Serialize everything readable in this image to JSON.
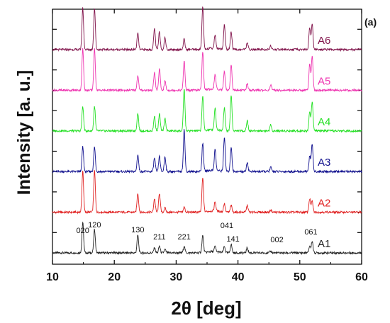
{
  "chart_data": {
    "type": "line",
    "panel_label": "(a)",
    "xlabel": "2θ [deg]",
    "ylabel": "Intensity [a. u.]",
    "xlim": [
      10,
      60
    ],
    "xticks": [
      10,
      20,
      30,
      40,
      50,
      60
    ],
    "yticks_labeled": false,
    "grid": false,
    "stacked_offset": true,
    "peak_positions": [
      14.9,
      16.8,
      23.8,
      26.5,
      27.3,
      28.2,
      31.3,
      34.3,
      36.3,
      37.8,
      38.9,
      41.5,
      45.3,
      51.6,
      52.0
    ],
    "series": [
      {
        "name": "A1",
        "color": "#222222",
        "values": [
          0.72,
          0.55,
          0.42,
          0.12,
          0.16,
          0.08,
          0.16,
          0.4,
          0.12,
          0.14,
          0.2,
          0.12,
          0.04,
          0.16,
          0.28
        ]
      },
      {
        "name": "A2",
        "color": "#e02020",
        "values": [
          0.98,
          0.98,
          0.45,
          0.32,
          0.45,
          0.1,
          0.12,
          0.8,
          0.22,
          0.2,
          0.16,
          0.16,
          0.06,
          0.32,
          0.26
        ]
      },
      {
        "name": "A3",
        "color": "#10108e",
        "values": [
          0.58,
          0.58,
          0.4,
          0.32,
          0.36,
          0.35,
          1.0,
          0.65,
          0.5,
          0.8,
          0.58,
          0.22,
          0.1,
          0.36,
          0.65
        ]
      },
      {
        "name": "A4",
        "color": "#22e022",
        "values": [
          0.58,
          0.58,
          0.42,
          0.35,
          0.4,
          0.3,
          1.0,
          0.82,
          0.52,
          0.55,
          0.85,
          0.24,
          0.14,
          0.45,
          0.7
        ]
      },
      {
        "name": "A5",
        "color": "#ee33b0",
        "values": [
          0.98,
          0.98,
          0.35,
          0.42,
          0.5,
          0.22,
          0.7,
          0.92,
          0.35,
          0.45,
          0.6,
          0.16,
          0.12,
          0.62,
          0.8
        ]
      },
      {
        "name": "A6",
        "color": "#80124a",
        "values": [
          0.98,
          0.98,
          0.38,
          0.5,
          0.42,
          0.28,
          0.25,
          1.0,
          0.32,
          0.58,
          0.42,
          0.16,
          0.08,
          0.52,
          0.62
        ]
      }
    ],
    "peak_labels": [
      {
        "text": "020",
        "x": 14.9,
        "tier": "low"
      },
      {
        "text": "120",
        "x": 16.8,
        "tier": "high"
      },
      {
        "text": "130",
        "x": 23.8,
        "tier": "mid"
      },
      {
        "text": "211",
        "x": 27.3,
        "tier": "low"
      },
      {
        "text": "221",
        "x": 31.3,
        "tier": "low"
      },
      {
        "text": "041",
        "x": 38.2,
        "tier": "high"
      },
      {
        "text": "141",
        "x": 39.2,
        "tier": "low"
      },
      {
        "text": "002",
        "x": 46.3,
        "tier": "low"
      },
      {
        "text": "061",
        "x": 51.8,
        "tier": "mid"
      }
    ]
  }
}
